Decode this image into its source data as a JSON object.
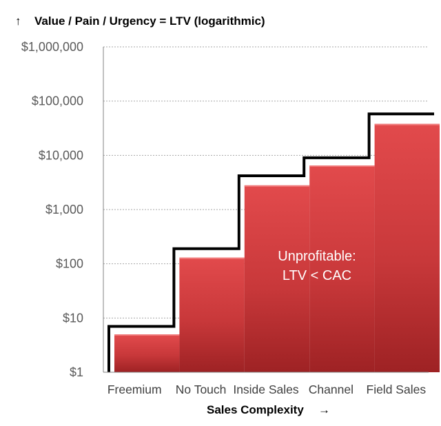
{
  "chart_data": {
    "type": "bar",
    "title": "Value / Pain / Urgency = LTV (logarithmic)",
    "title_arrow": "↑",
    "xlabel": "Sales Complexity",
    "xlabel_arrow": "→",
    "ylabel": "",
    "yscale": "log",
    "ylim": [
      1,
      1000000
    ],
    "ytick_values": [
      1,
      10,
      100,
      1000,
      10000,
      100000,
      1000000
    ],
    "ytick_labels": [
      "$1",
      "$10",
      "$100",
      "$1,000",
      "$10,000",
      "$100,000",
      "$1,000,000"
    ],
    "grid": true,
    "categories": [
      "Freemium",
      "No Touch",
      "Inside Sales",
      "Channel",
      "Field Sales"
    ],
    "series": [
      {
        "name": "",
        "kind": "bar",
        "values": [
          5,
          130,
          2800,
          6500,
          38000
        ]
      },
      {
        "name": "",
        "kind": "step-line",
        "values": [
          7,
          190,
          4200,
          9000,
          58000
        ]
      }
    ],
    "annotation": [
      "Unprofitable:",
      "LTV < CAC"
    ],
    "colors": {
      "bar": "#c8383a",
      "bar_top": "#e24a4c",
      "bar_bottom": "#9e2224",
      "line": "#000000",
      "grid": "#a6a6a6",
      "axis": "#808080"
    }
  }
}
